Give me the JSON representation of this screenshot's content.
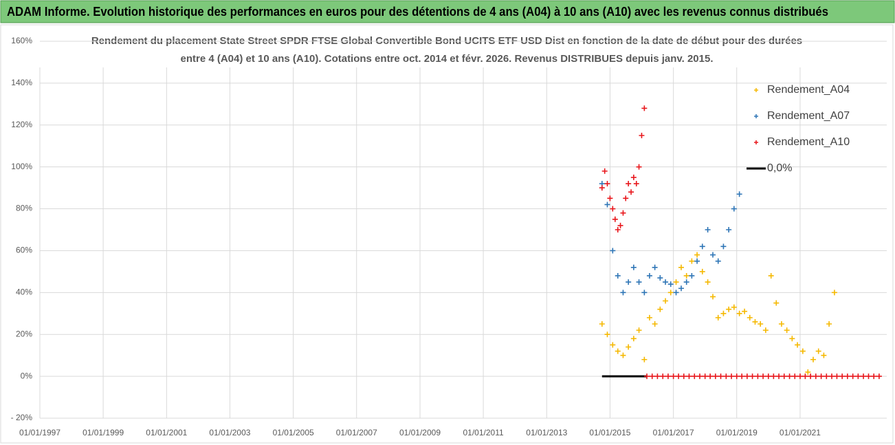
{
  "header": {
    "title": "ADAM Informe. Evolution historique des performances en euros pour des détentions de 4 ans (A04) à 10 ans (A10) avec les revenus connus distribués"
  },
  "chart_data": {
    "type": "scatter",
    "title": [
      "Rendement du placement State Street SPDR FTSE Global Convertible Bond UCITS ETF USD Dist en fonction de la date de début pour des durées",
      "entre 4 (A04) et 10 ans (A10). Cotations entre oct. 2014 et févr. 2026. Revenus DISTRIBUES depuis janv. 2015."
    ],
    "xlim": [
      "1997-01-01",
      "2023-09-27"
    ],
    "xticks": [
      {
        "value": "1997-01-01",
        "label": "01/01/1997"
      },
      {
        "value": "1999-01-01",
        "label": "01/01/1999"
      },
      {
        "value": "2001-01-01",
        "label": "01/01/2001"
      },
      {
        "value": "2003-01-01",
        "label": "01/01/2003"
      },
      {
        "value": "2005-01-01",
        "label": "01/01/2005"
      },
      {
        "value": "2007-01-01",
        "label": "01/01/2007"
      },
      {
        "value": "2009-01-01",
        "label": "01/01/2009"
      },
      {
        "value": "2011-01-01",
        "label": "01/01/2011"
      },
      {
        "value": "2013-01-01",
        "label": "01/01/2013"
      },
      {
        "value": "2015-01-01",
        "label": "01/01/2015"
      },
      {
        "value": "2017-01-01",
        "label": "01/01/2017"
      },
      {
        "value": "2019-01-01",
        "label": "01/01/2019"
      },
      {
        "value": "2021-01-01",
        "label": "01/01/2021"
      }
    ],
    "ylim": [
      -20,
      160
    ],
    "yticks": [
      {
        "value": -20,
        "label": "- 20%"
      },
      {
        "value": 0,
        "label": "0%"
      },
      {
        "value": 20,
        "label": "20%"
      },
      {
        "value": 40,
        "label": "40%"
      },
      {
        "value": 60,
        "label": "60%"
      },
      {
        "value": 80,
        "label": "80%"
      },
      {
        "value": 100,
        "label": "100%"
      },
      {
        "value": 120,
        "label": "120%"
      },
      {
        "value": 140,
        "label": "140%"
      },
      {
        "value": 160,
        "label": "160%"
      }
    ],
    "grid": true,
    "legend": "upper right",
    "series": [
      {
        "name": "Rendement_A04",
        "color": "#f5b800",
        "style": "cross",
        "x": [
          "2014-10-01",
          "2014-12-01",
          "2015-02-01",
          "2015-04-01",
          "2015-06-01",
          "2015-08-01",
          "2015-10-01",
          "2015-12-01",
          "2016-02-01",
          "2016-04-01",
          "2016-06-01",
          "2016-08-01",
          "2016-10-01",
          "2016-12-01",
          "2017-02-01",
          "2017-04-01",
          "2017-06-01",
          "2017-08-01",
          "2017-10-01",
          "2017-12-01",
          "2018-02-01",
          "2018-04-01",
          "2018-06-01",
          "2018-08-01",
          "2018-10-01",
          "2018-12-01",
          "2019-02-01",
          "2019-04-01",
          "2019-06-01",
          "2019-08-01",
          "2019-10-01",
          "2019-12-01",
          "2020-02-01",
          "2020-04-01",
          "2020-06-01",
          "2020-08-01",
          "2020-10-01",
          "2020-12-01",
          "2021-02-01",
          "2021-04-01",
          "2021-06-01",
          "2021-08-01",
          "2021-10-01",
          "2021-12-01",
          "2022-02-01"
        ],
        "values": [
          25,
          20,
          15,
          12,
          10,
          14,
          18,
          22,
          8,
          28,
          25,
          32,
          36,
          40,
          45,
          52,
          48,
          55,
          58,
          50,
          45,
          38,
          28,
          30,
          32,
          33,
          30,
          31,
          28,
          26,
          25,
          22,
          48,
          35,
          25,
          22,
          18,
          15,
          12,
          2,
          8,
          12,
          10,
          25,
          40
        ]
      },
      {
        "name": "Rendement_A07",
        "color": "#2e75b6",
        "style": "cross",
        "x": [
          "2014-10-01",
          "2014-12-01",
          "2015-02-01",
          "2015-04-01",
          "2015-06-01",
          "2015-08-01",
          "2015-10-01",
          "2015-12-01",
          "2016-02-01",
          "2016-04-01",
          "2016-06-01",
          "2016-08-01",
          "2016-10-01",
          "2016-12-01",
          "2017-02-01",
          "2017-04-01",
          "2017-06-01",
          "2017-08-01",
          "2017-10-01",
          "2017-12-01",
          "2018-02-01",
          "2018-04-01",
          "2018-06-01",
          "2018-08-01",
          "2018-10-01",
          "2018-12-01",
          "2019-02-01"
        ],
        "values": [
          92,
          82,
          60,
          48,
          40,
          45,
          52,
          45,
          40,
          48,
          52,
          47,
          45,
          44,
          40,
          42,
          45,
          48,
          55,
          62,
          70,
          58,
          55,
          62,
          70,
          80,
          87
        ]
      },
      {
        "name": "Rendement_A10",
        "color": "#e8161b",
        "style": "cross",
        "x": [
          "2014-10-01",
          "2014-11-01",
          "2014-12-01",
          "2015-01-01",
          "2015-02-01",
          "2015-03-01",
          "2015-04-01",
          "2015-05-01",
          "2015-06-01",
          "2015-07-01",
          "2015-08-01",
          "2015-09-01",
          "2015-10-01",
          "2015-11-01",
          "2015-12-01",
          "2016-01-01",
          "2016-02-01",
          "2016-03-01",
          "2016-05-01",
          "2016-07-01",
          "2016-09-01",
          "2016-11-01",
          "2017-01-01",
          "2017-03-01",
          "2017-05-01",
          "2017-07-01",
          "2017-09-01",
          "2017-11-01",
          "2018-01-01",
          "2018-03-01",
          "2018-05-01",
          "2018-07-01",
          "2018-09-01",
          "2018-11-01",
          "2019-01-01",
          "2019-03-01",
          "2019-05-01",
          "2019-07-01",
          "2019-09-01",
          "2019-11-01",
          "2020-01-01",
          "2020-03-01",
          "2020-05-01",
          "2020-07-01",
          "2020-09-01",
          "2020-11-01",
          "2021-01-01",
          "2021-03-01",
          "2021-05-01",
          "2021-07-01",
          "2021-09-01",
          "2021-11-01",
          "2022-01-01",
          "2022-03-01",
          "2022-05-01",
          "2022-07-01",
          "2022-09-01",
          "2022-11-01",
          "2023-01-01",
          "2023-03-01",
          "2023-05-01",
          "2023-07-01"
        ],
        "values": [
          90,
          98,
          92,
          85,
          80,
          75,
          70,
          72,
          78,
          85,
          92,
          88,
          95,
          92,
          100,
          115,
          128,
          0,
          0,
          0,
          0,
          0,
          0,
          0,
          0,
          0,
          0,
          0,
          0,
          0,
          0,
          0,
          0,
          0,
          0,
          0,
          0,
          0,
          0,
          0,
          0,
          0,
          0,
          0,
          0,
          0,
          0,
          0,
          0,
          0,
          0,
          0,
          0,
          0,
          0,
          0,
          0,
          0,
          0,
          0,
          0,
          0
        ]
      },
      {
        "name": "0,0%",
        "color": "#000000",
        "style": "line",
        "x": [
          "2014-10-01",
          "2016-03-01"
        ],
        "values": [
          0,
          0
        ]
      }
    ]
  }
}
